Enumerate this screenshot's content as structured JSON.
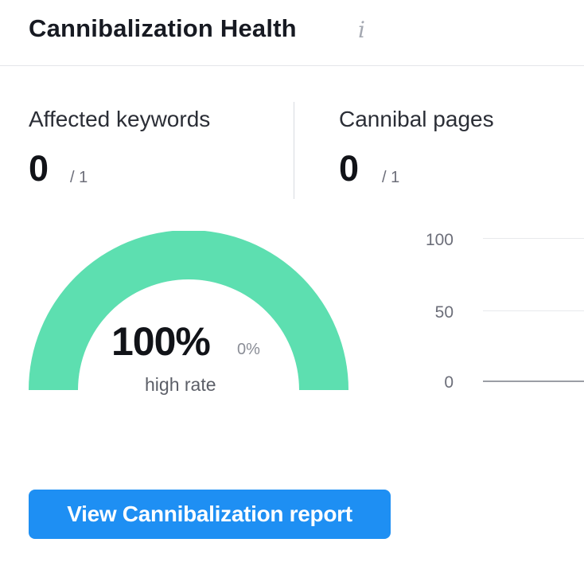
{
  "widget": {
    "title": "Cannibalization Health",
    "info_icon": "i"
  },
  "metrics": {
    "affected_keywords": {
      "label": "Affected keywords",
      "value": "0",
      "total": "/ 1"
    },
    "cannibal_pages": {
      "label": "Cannibal pages",
      "value": "0",
      "total": "/ 1"
    }
  },
  "gauge": {
    "fraction": 1.0,
    "value_label": "100%",
    "secondary_label": "0%",
    "caption": "high rate",
    "color": "#5ddfb0"
  },
  "chart_data": {
    "type": "line",
    "yticks": [
      "100",
      "50",
      "0"
    ],
    "ylim": [
      0,
      100
    ],
    "series": []
  },
  "cta": {
    "label": "View Cannibalization report",
    "color": "#1e8ff3"
  }
}
